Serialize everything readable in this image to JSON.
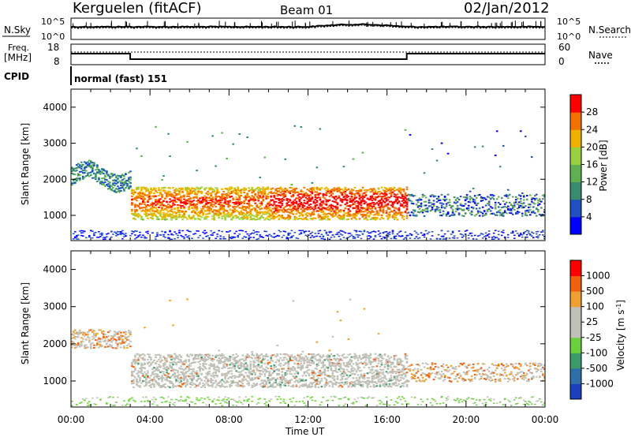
{
  "header": {
    "station": "Kerguelen (fitACF)",
    "beam": "Beam 01",
    "date": "02/Jan/2012"
  },
  "top_panel": {
    "left_label": "N.Sky",
    "right_label": "N.Search",
    "left_ticks": [
      "10^5",
      "10^0"
    ],
    "right_ticks": [
      "10^5",
      "10^0"
    ]
  },
  "freq_panel": {
    "left_label_1": "Freq.",
    "left_label_2": "[MHz]",
    "left_ticks": [
      "18",
      "8"
    ],
    "right_label": "Nave",
    "right_ticks": [
      "60",
      "0"
    ]
  },
  "cpid": {
    "label": "CPID",
    "value": "normal (fast) 151"
  },
  "chart_data": [
    {
      "type": "heatmap",
      "title": "",
      "variable": "Power",
      "xlabel": "",
      "ylabel": "Slant Range [km]",
      "yticks": [
        "1000",
        "2000",
        "3000",
        "4000"
      ],
      "xlim_hours": [
        0,
        24
      ],
      "ylim_km": [
        300,
        4500
      ],
      "colorbar_label": "Power [dB]",
      "colorbar_ticks": [
        "4",
        "8",
        "12",
        "16",
        "20",
        "24",
        "28"
      ],
      "colorbar_colors": [
        "#0000ff",
        "#2050c0",
        "#3a8a70",
        "#5fb050",
        "#9ad040",
        "#f0b000",
        "#f07000",
        "#ff0000"
      ]
    },
    {
      "type": "heatmap",
      "title": "",
      "variable": "Velocity",
      "xlabel": "Time UT",
      "ylabel": "Slant Range [km]",
      "yticks": [
        "1000",
        "2000",
        "3000",
        "4000"
      ],
      "xticks": [
        "00:00",
        "04:00",
        "08:00",
        "12:00",
        "16:00",
        "20:00",
        "00:00"
      ],
      "xlim_hours": [
        0,
        24
      ],
      "ylim_km": [
        300,
        4500
      ],
      "colorbar_label": "Velocity [m s",
      "colorbar_label_sup": "-1",
      "colorbar_label_end": "]",
      "colorbar_ticks": [
        "1000",
        "500",
        "100",
        "25",
        "-25",
        "-100",
        "-500",
        "-1000"
      ],
      "colorbar_colors": [
        "#1a3fbf",
        "#2f6ea8",
        "#3a9a6a",
        "#6ccf3c",
        "#c0c0b8",
        "#c0c0b8",
        "#f0a030",
        "#f06010",
        "#ff0000"
      ]
    }
  ]
}
